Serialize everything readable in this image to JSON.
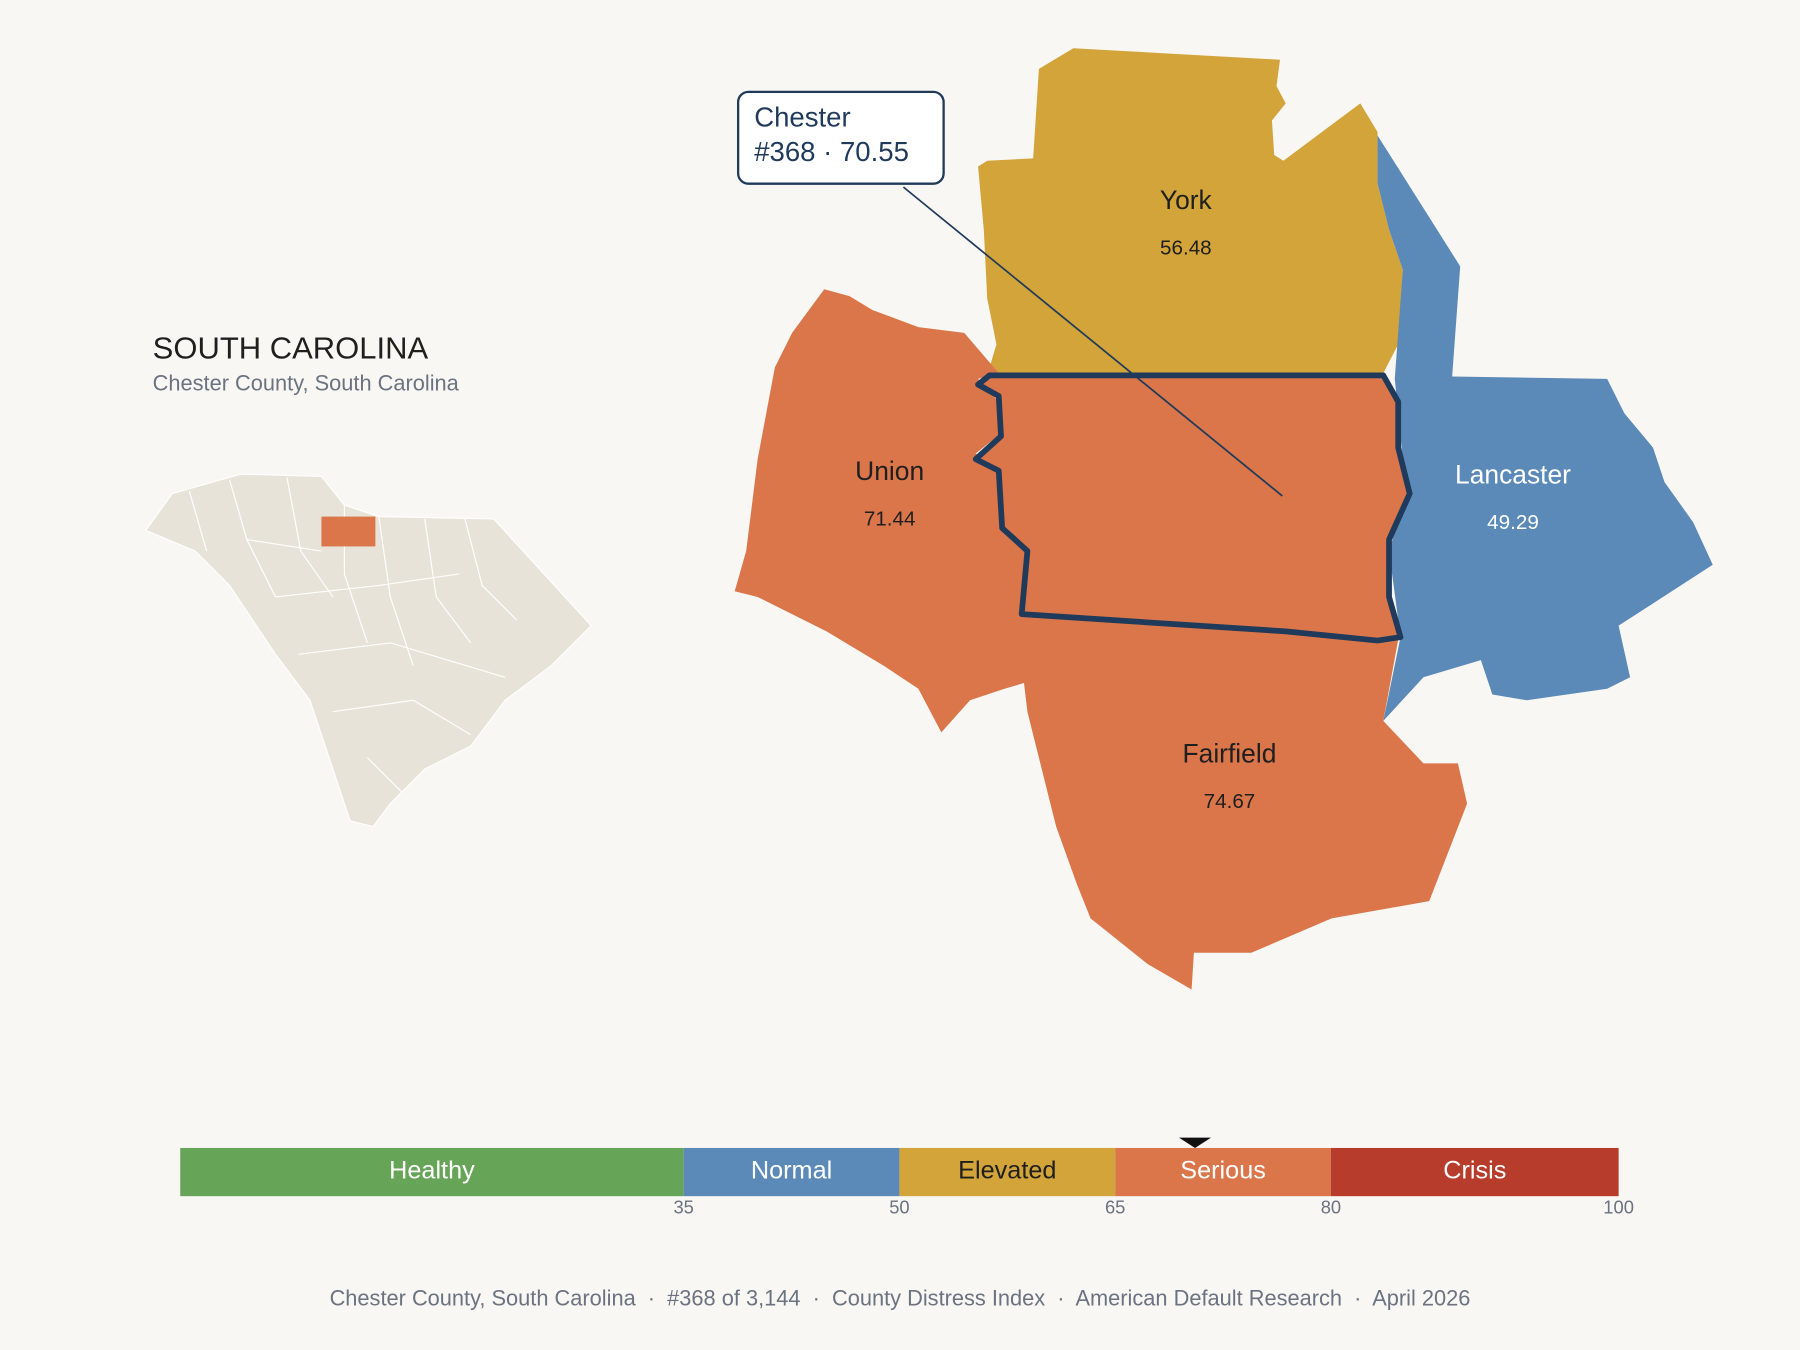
{
  "header": {
    "title": "SOUTH CAROLINA",
    "subtitle": "Chester County, South Carolina"
  },
  "focus": {
    "name": "Chester",
    "score": 70.55
  },
  "callout": {
    "lines": [
      "Chester",
      "#368 · 70.55"
    ]
  },
  "counties": [
    {
      "name": "York",
      "score": 56.48
    },
    {
      "name": "Lancaster",
      "score": 49.29
    },
    {
      "name": "Union",
      "score": 71.44
    },
    {
      "name": "Fairfield",
      "score": 74.67
    }
  ],
  "scale": {
    "min": 0,
    "marker": 70.55,
    "segments": [
      {
        "label": "Healthy",
        "end": 35,
        "color": "#66a558",
        "text_color": "#ffffff"
      },
      {
        "label": "Normal",
        "end": 50,
        "color": "#5b8ab8",
        "text_color": "#ffffff"
      },
      {
        "label": "Elevated",
        "end": 65,
        "color": "#d2a43a",
        "text_color": "#1f1f1f"
      },
      {
        "label": "Serious",
        "end": 80,
        "color": "#da764a",
        "text_color": "#ffffff"
      },
      {
        "label": "Crisis",
        "end": 100,
        "color": "#b83c2c",
        "text_color": "#ffffff"
      }
    ]
  },
  "footer": "Chester County, South Carolina  ·  #368 of 3,144  ·  County Distress Index  ·  American Default Research  ·  April 2026"
}
